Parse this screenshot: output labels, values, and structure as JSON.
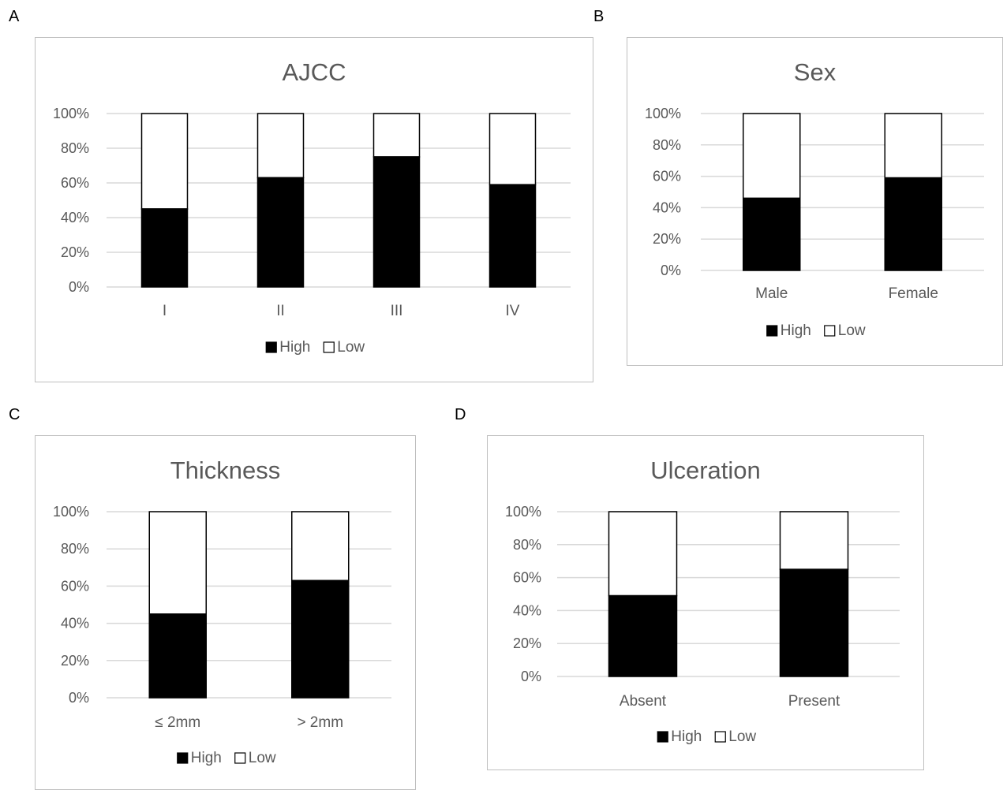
{
  "panels": [
    {
      "letter": "A"
    },
    {
      "letter": "B"
    },
    {
      "letter": "C"
    },
    {
      "letter": "D"
    }
  ],
  "colors": {
    "high": "#000000",
    "low": "#ffffff",
    "outline": "#000000",
    "grid": "#d9d9d9",
    "text": "#595959"
  },
  "chart_data": [
    {
      "type": "bar",
      "stacked": "percent",
      "title": "AJCC",
      "categories": [
        "I",
        "II",
        "III",
        "IV"
      ],
      "series": [
        {
          "name": "High",
          "values": [
            45,
            63,
            75,
            59
          ]
        },
        {
          "name": "Low",
          "values": [
            55,
            37,
            25,
            41
          ]
        }
      ],
      "ylim": [
        0,
        100
      ],
      "yticks": [
        "0%",
        "20%",
        "40%",
        "60%",
        "80%",
        "100%"
      ],
      "grid": true,
      "legend": "bottom"
    },
    {
      "type": "bar",
      "stacked": "percent",
      "title": "Sex",
      "categories": [
        "Male",
        "Female"
      ],
      "series": [
        {
          "name": "High",
          "values": [
            46,
            59
          ]
        },
        {
          "name": "Low",
          "values": [
            54,
            41
          ]
        }
      ],
      "ylim": [
        0,
        100
      ],
      "yticks": [
        "0%",
        "20%",
        "40%",
        "60%",
        "80%",
        "100%"
      ],
      "grid": true,
      "legend": "bottom"
    },
    {
      "type": "bar",
      "stacked": "percent",
      "title": "Thickness",
      "categories": [
        "≤ 2mm",
        "> 2mm"
      ],
      "series": [
        {
          "name": "High",
          "values": [
            45,
            63
          ]
        },
        {
          "name": "Low",
          "values": [
            55,
            37
          ]
        }
      ],
      "ylim": [
        0,
        100
      ],
      "yticks": [
        "0%",
        "20%",
        "40%",
        "60%",
        "80%",
        "100%"
      ],
      "grid": true,
      "legend": "bottom"
    },
    {
      "type": "bar",
      "stacked": "percent",
      "title": "Ulceration",
      "categories": [
        "Absent",
        "Present"
      ],
      "series": [
        {
          "name": "High",
          "values": [
            49,
            65
          ]
        },
        {
          "name": "Low",
          "values": [
            51,
            35
          ]
        }
      ],
      "ylim": [
        0,
        100
      ],
      "yticks": [
        "0%",
        "20%",
        "40%",
        "60%",
        "80%",
        "100%"
      ],
      "grid": true,
      "legend": "bottom"
    }
  ]
}
